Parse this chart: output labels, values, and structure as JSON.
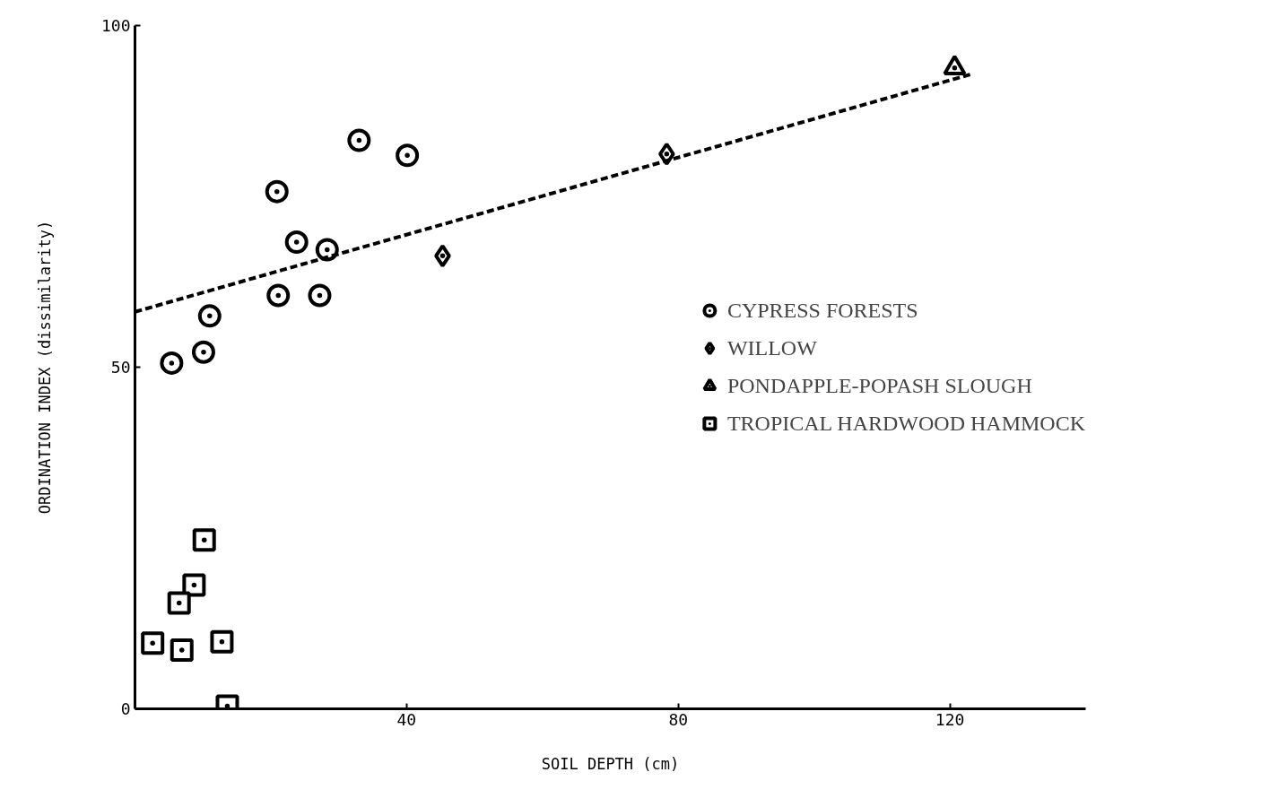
{
  "chart_data": {
    "type": "scatter",
    "xlabel": "SOIL DEPTH (cm)",
    "ylabel": "ORDINATION INDEX (dissimilarity)",
    "xlim": [
      0,
      140
    ],
    "ylim": [
      0,
      100
    ],
    "xticks": [
      40,
      80,
      120
    ],
    "yticks": [
      0,
      50,
      100
    ],
    "grid": false,
    "legend": "right",
    "series": [
      {
        "name": "CYPRESS FORESTS",
        "color": "#000000",
        "marker": "circle",
        "x": [
          5.4,
          10.1,
          11.0,
          20.9,
          21.1,
          23.8,
          27.2,
          28.3,
          33.0,
          40.1
        ],
        "values": [
          50.6,
          52.2,
          57.5,
          75.7,
          60.5,
          68.3,
          60.5,
          67.2,
          83.2,
          81.0
        ]
      },
      {
        "name": "WILLOW",
        "color": "#000000",
        "marker": "diamond",
        "x": [
          45.3,
          78.3
        ],
        "values": [
          66.3,
          81.2
        ]
      },
      {
        "name": "PONDAPPLE-POPASH SLOUGH",
        "color": "#000000",
        "marker": "triangle",
        "x": [
          120.7
        ],
        "values": [
          93.8
        ]
      },
      {
        "name": "TROPICAL HARDWOOD HAMMOCK",
        "color": "#000000",
        "marker": "square",
        "x": [
          10.2,
          8.7,
          6.5,
          2.6,
          6.9,
          12.8,
          13.6
        ],
        "values": [
          24.7,
          18.1,
          15.5,
          9.6,
          8.6,
          9.8,
          0.4
        ]
      },
      {
        "type": "line",
        "color": "#000000",
        "line_style": "dashed",
        "x": [
          0,
          123.2
        ],
        "values": [
          58.1,
          92.9
        ]
      }
    ]
  }
}
